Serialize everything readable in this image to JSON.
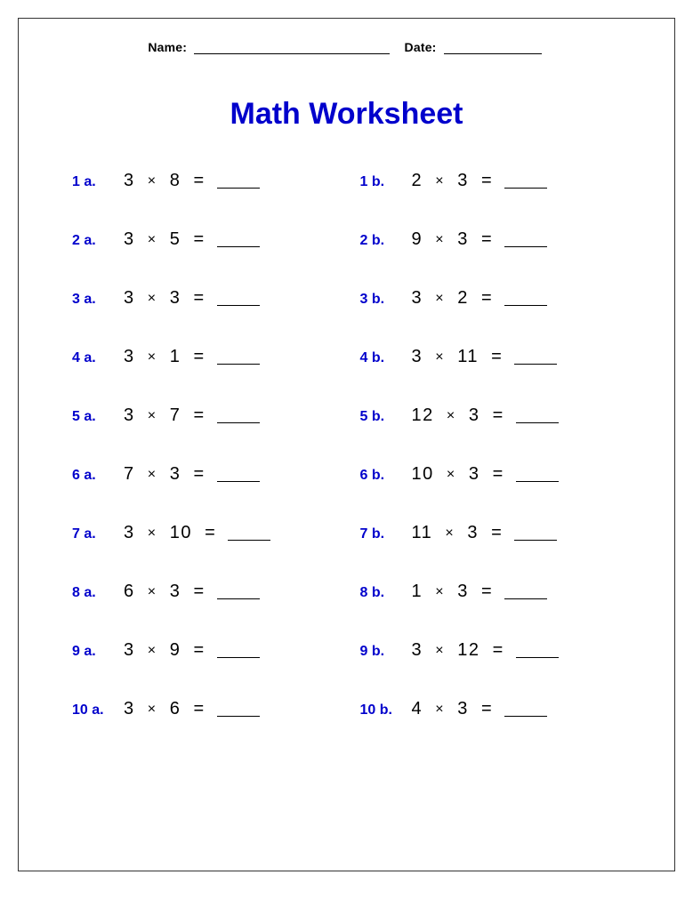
{
  "header": {
    "name_label": "Name:",
    "date_label": "Date:"
  },
  "title": "Math Worksheet",
  "label_color": "#0000cc",
  "title_color": "#0000cc",
  "text_color": "#000000",
  "background_color": "#ffffff",
  "border_color": "#333333",
  "title_fontsize": 34,
  "label_fontsize": 16,
  "expr_fontsize": 20,
  "multiply_symbol": "×",
  "equals_symbol": "=",
  "problems": [
    {
      "label": "1 a.",
      "a": 3,
      "b": 8
    },
    {
      "label": "1 b.",
      "a": 2,
      "b": 3
    },
    {
      "label": "2 a.",
      "a": 3,
      "b": 5
    },
    {
      "label": "2 b.",
      "a": 9,
      "b": 3
    },
    {
      "label": "3 a.",
      "a": 3,
      "b": 3
    },
    {
      "label": "3 b.",
      "a": 3,
      "b": 2
    },
    {
      "label": "4 a.",
      "a": 3,
      "b": 1
    },
    {
      "label": "4 b.",
      "a": 3,
      "b": 11
    },
    {
      "label": "5 a.",
      "a": 3,
      "b": 7
    },
    {
      "label": "5 b.",
      "a": 12,
      "b": 3
    },
    {
      "label": "6 a.",
      "a": 7,
      "b": 3
    },
    {
      "label": "6 b.",
      "a": 10,
      "b": 3
    },
    {
      "label": "7 a.",
      "a": 3,
      "b": 10
    },
    {
      "label": "7 b.",
      "a": 11,
      "b": 3
    },
    {
      "label": "8 a.",
      "a": 6,
      "b": 3
    },
    {
      "label": "8 b.",
      "a": 1,
      "b": 3
    },
    {
      "label": "9 a.",
      "a": 3,
      "b": 9
    },
    {
      "label": "9 b.",
      "a": 3,
      "b": 12
    },
    {
      "label": "10 a.",
      "a": 3,
      "b": 6
    },
    {
      "label": "10 b.",
      "a": 4,
      "b": 3
    }
  ]
}
